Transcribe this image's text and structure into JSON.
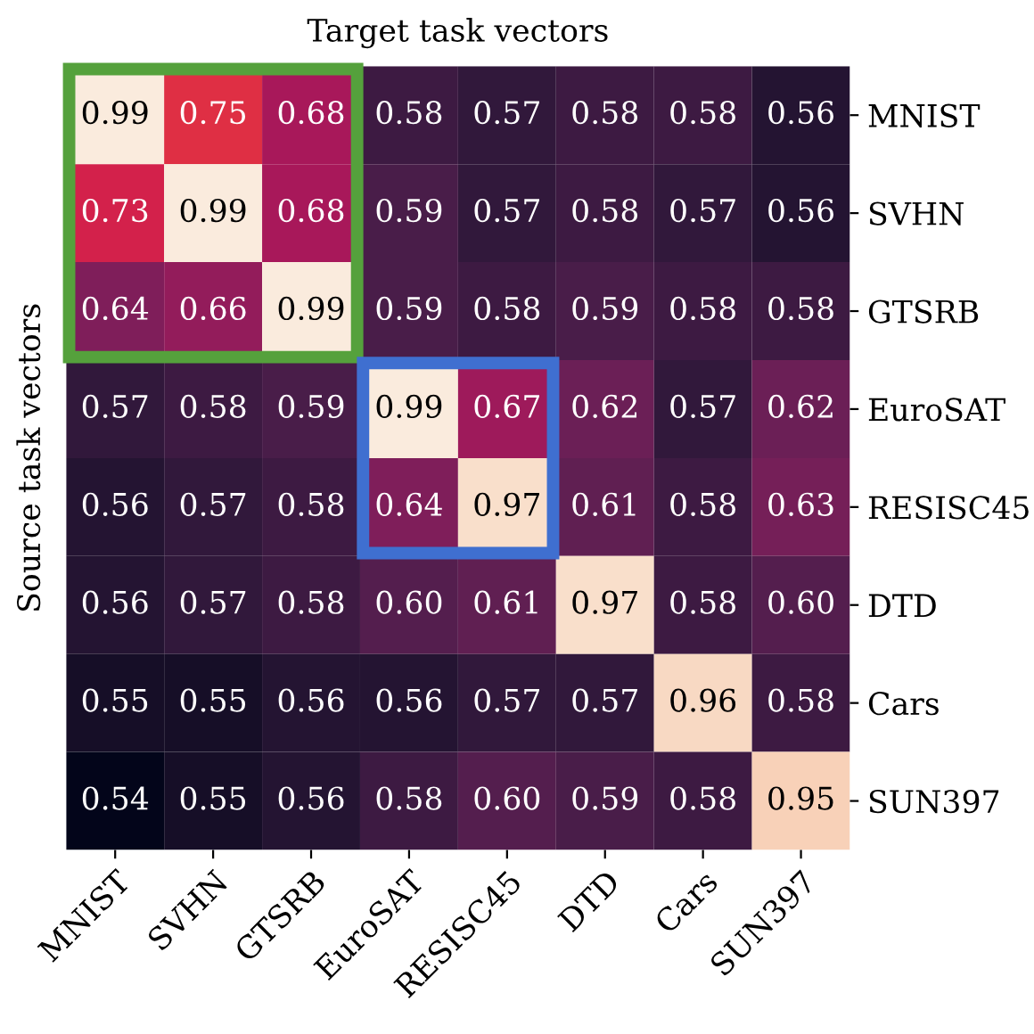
{
  "chart_data": {
    "type": "heatmap",
    "xlabel": "Target task vectors",
    "ylabel": "Source task vectors",
    "categories": [
      "MNIST",
      "SVHN",
      "GTSRB",
      "EuroSAT",
      "RESISC45",
      "DTD",
      "Cars",
      "SUN397"
    ],
    "y_categories": [
      "MNIST",
      "SVHN",
      "GTSRB",
      "EuroSAT",
      "RESISC45",
      "DTD",
      "Cars",
      "SUN397"
    ],
    "cells": [
      [
        0.99,
        0.75,
        0.68,
        0.58,
        0.57,
        0.58,
        0.58,
        0.56
      ],
      [
        0.73,
        0.99,
        0.68,
        0.59,
        0.57,
        0.58,
        0.57,
        0.56
      ],
      [
        0.64,
        0.66,
        0.99,
        0.59,
        0.58,
        0.59,
        0.58,
        0.58
      ],
      [
        0.57,
        0.58,
        0.59,
        0.99,
        0.67,
        0.62,
        0.57,
        0.62
      ],
      [
        0.56,
        0.57,
        0.58,
        0.64,
        0.97,
        0.61,
        0.58,
        0.63
      ],
      [
        0.56,
        0.57,
        0.58,
        0.6,
        0.61,
        0.97,
        0.58,
        0.6
      ],
      [
        0.55,
        0.55,
        0.56,
        0.56,
        0.57,
        0.57,
        0.96,
        0.58
      ],
      [
        0.54,
        0.55,
        0.56,
        0.58,
        0.6,
        0.59,
        0.58,
        0.95
      ]
    ],
    "cell_labels": [
      [
        "0.99",
        "0.75",
        "0.68",
        "0.58",
        "0.57",
        "0.58",
        "0.58",
        "0.56"
      ],
      [
        "0.73",
        "0.99",
        "0.68",
        "0.59",
        "0.57",
        "0.58",
        "0.57",
        "0.56"
      ],
      [
        "0.64",
        "0.66",
        "0.99",
        "0.59",
        "0.58",
        "0.59",
        "0.58",
        "0.58"
      ],
      [
        "0.57",
        "0.58",
        "0.59",
        "0.99",
        "0.67",
        "0.62",
        "0.57",
        "0.62"
      ],
      [
        "0.56",
        "0.57",
        "0.58",
        "0.64",
        "0.97",
        "0.61",
        "0.58",
        "0.63"
      ],
      [
        "0.56",
        "0.57",
        "0.58",
        "0.60",
        "0.61",
        "0.97",
        "0.58",
        "0.60"
      ],
      [
        "0.55",
        "0.55",
        "0.56",
        "0.56",
        "0.57",
        "0.57",
        "0.96",
        "0.58"
      ],
      [
        "0.54",
        "0.55",
        "0.56",
        "0.58",
        "0.60",
        "0.59",
        "0.58",
        "0.95"
      ]
    ],
    "data_labels": true
  }
}
